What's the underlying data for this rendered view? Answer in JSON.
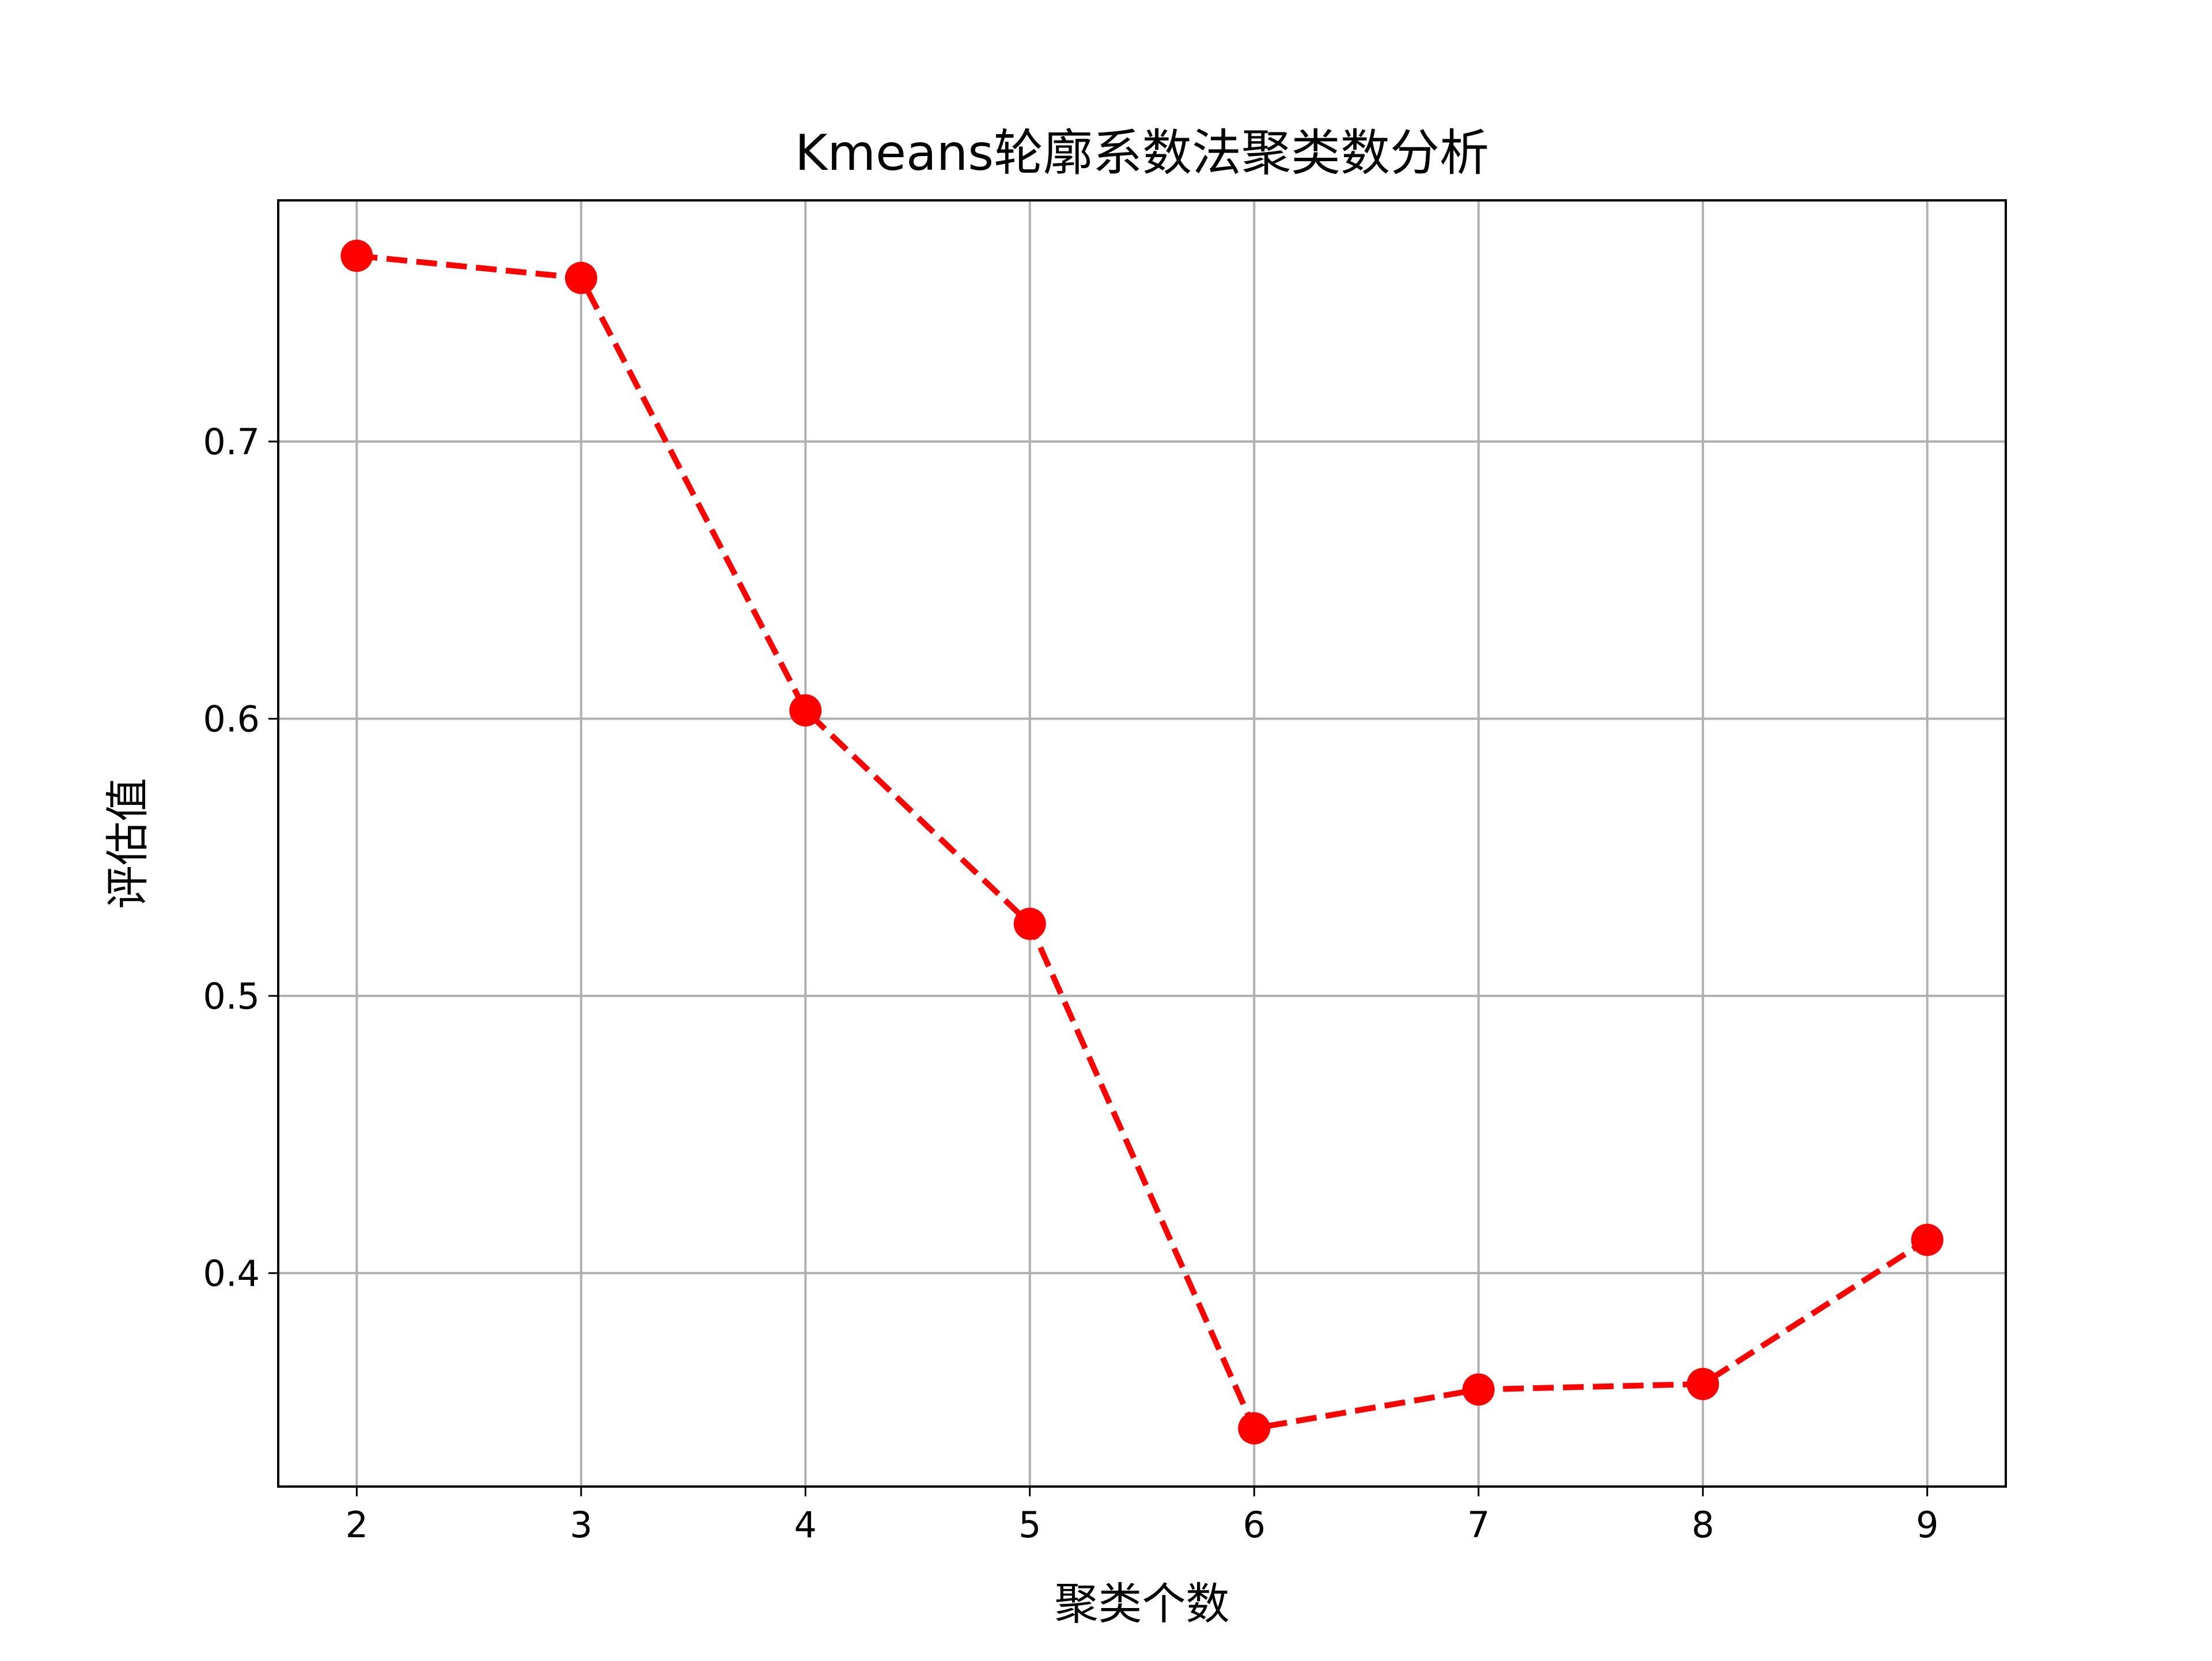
{
  "chart_data": {
    "type": "line",
    "title": "Kmeans轮廓系数法聚类数分析",
    "xlabel": "聚类个数",
    "ylabel": "评估值",
    "x": [
      2,
      3,
      4,
      5,
      6,
      7,
      8,
      9
    ],
    "y": [
      0.767,
      0.759,
      0.603,
      0.526,
      0.344,
      0.358,
      0.36,
      0.412
    ],
    "xticks": [
      "2",
      "3",
      "4",
      "5",
      "6",
      "7",
      "8",
      "9"
    ],
    "yticks": [
      "0.4",
      "0.5",
      "0.6",
      "0.7"
    ],
    "xlim": [
      1.65,
      9.35
    ],
    "ylim": [
      0.323,
      0.787
    ],
    "grid": true,
    "line_style": "dashed",
    "marker": "circle",
    "color": "#ff0000"
  }
}
